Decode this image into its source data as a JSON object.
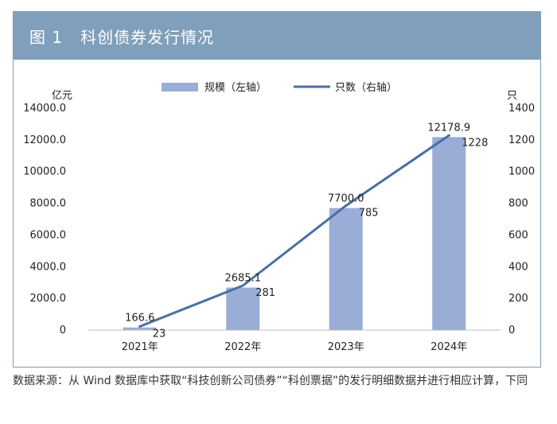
{
  "figure": {
    "number": "图 1",
    "title": "科创债券发行情况"
  },
  "footnote": "数据来源：从 Wind 数据库中获取“科技创新公司债券”“科创票据”的发行明细数据并进行相应计算，下同",
  "colors": {
    "header_bg": "#7f9fba",
    "bar": "#9aadd6",
    "line": "#4a6ea3"
  },
  "chart_data": {
    "type": "bar",
    "categories": [
      "2021年",
      "2022年",
      "2023年",
      "2024年"
    ],
    "series": [
      {
        "name": "规模（左轴）",
        "type": "bar",
        "axis": "left",
        "values": [
          166.6,
          2685.1,
          7700.0,
          12178.9
        ],
        "labels": [
          "166.6",
          "2685.1",
          "7700.0",
          "12178.9"
        ]
      },
      {
        "name": "只数（右轴）",
        "type": "line",
        "axis": "right",
        "values": [
          23,
          281,
          785,
          1228
        ],
        "labels": [
          "23",
          "281",
          "785",
          "1228"
        ]
      }
    ],
    "y_left": {
      "unit": "亿元",
      "ylim": [
        0,
        14000
      ],
      "ticks": [
        0,
        2000,
        4000,
        6000,
        8000,
        10000,
        12000,
        14000
      ],
      "tick_labels": [
        "0",
        "2000.0",
        "4000.0",
        "6000.0",
        "8000.0",
        "10000.0",
        "12000.0",
        "14000.0"
      ]
    },
    "y_right": {
      "unit": "只",
      "ylim": [
        0,
        1400
      ],
      "ticks": [
        0,
        200,
        400,
        600,
        800,
        1000,
        1200,
        1400
      ],
      "tick_labels": [
        "0",
        "200",
        "400",
        "600",
        "800",
        "1000",
        "1200",
        "1400"
      ]
    },
    "legend_position": "top-center",
    "grid": false
  }
}
